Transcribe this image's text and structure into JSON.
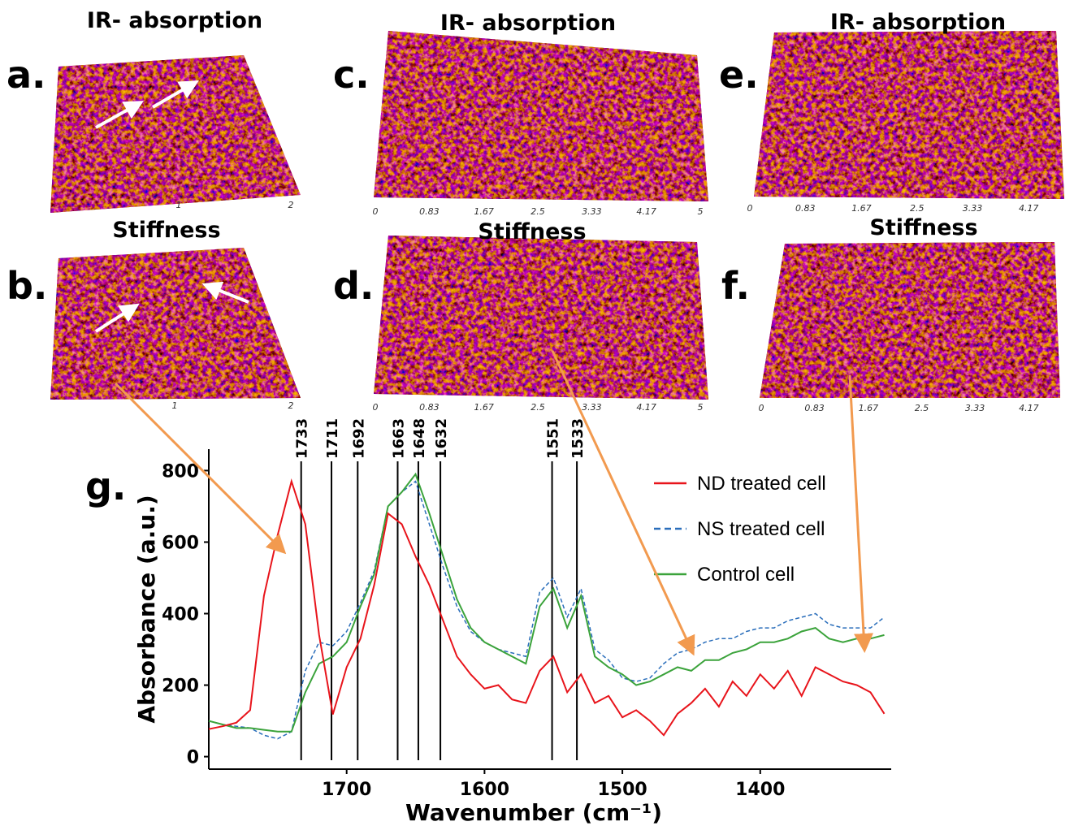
{
  "panels": [
    {
      "label": "a.",
      "title": "IR- absorption",
      "xticks": [
        1,
        2
      ]
    },
    {
      "label": "b.",
      "title": "Stiffness",
      "xticks": [
        1,
        2
      ]
    },
    {
      "label": "c.",
      "title": "IR- absorption",
      "xticks": [
        0,
        0.83,
        1.67,
        2.5,
        3.33,
        4.17,
        5
      ]
    },
    {
      "label": "d.",
      "title": "Stiffness",
      "xticks": [
        0,
        0.83,
        1.67,
        2.5,
        3.33,
        4.17,
        5
      ]
    },
    {
      "label": "e.",
      "title": "IR- absorption",
      "xticks": [
        0,
        0.83,
        1.67,
        2.5,
        3.33,
        4.17
      ]
    },
    {
      "label": "f.",
      "title": "Stiffness",
      "xticks": [
        0,
        0.83,
        1.67,
        2.5,
        3.33,
        4.17
      ]
    }
  ],
  "chart_data": {
    "type": "line",
    "label": "g.",
    "xlabel": "Wavenumber (cm⁻¹)",
    "ylabel": "Absorbance  (a.u.)",
    "x": [
      1800,
      1790,
      1780,
      1770,
      1760,
      1750,
      1740,
      1730,
      1720,
      1710,
      1700,
      1690,
      1680,
      1670,
      1660,
      1650,
      1640,
      1630,
      1620,
      1610,
      1600,
      1590,
      1580,
      1570,
      1560,
      1550,
      1540,
      1530,
      1520,
      1510,
      1500,
      1490,
      1480,
      1470,
      1460,
      1450,
      1440,
      1430,
      1420,
      1410,
      1400,
      1390,
      1380,
      1370,
      1360,
      1350,
      1340,
      1330,
      1320,
      1310
    ],
    "series": [
      {
        "name": "ND treated cell",
        "color": "#e8141b",
        "style": "solid",
        "values": [
          77,
          85,
          95,
          130,
          450,
          620,
          770,
          650,
          340,
          118,
          250,
          330,
          480,
          680,
          650,
          560,
          480,
          380,
          280,
          230,
          190,
          200,
          160,
          150,
          240,
          280,
          180,
          230,
          150,
          170,
          110,
          130,
          100,
          60,
          120,
          150,
          190,
          140,
          210,
          170,
          230,
          190,
          240,
          170,
          250,
          230,
          210,
          200,
          180,
          120
        ]
      },
      {
        "name": "NS treated cell",
        "color": "#2a6ebb",
        "style": "dashed",
        "values": [
          100,
          90,
          85,
          80,
          60,
          50,
          70,
          240,
          320,
          310,
          350,
          430,
          520,
          700,
          740,
          770,
          650,
          530,
          420,
          350,
          320,
          300,
          290,
          280,
          460,
          500,
          390,
          470,
          300,
          270,
          220,
          210,
          220,
          260,
          290,
          300,
          320,
          330,
          330,
          350,
          360,
          360,
          380,
          390,
          400,
          370,
          360,
          360,
          360,
          390
        ]
      },
      {
        "name": "Control cell",
        "color": "#3ba33b",
        "style": "solid",
        "values": [
          100,
          90,
          80,
          80,
          75,
          70,
          70,
          180,
          260,
          280,
          320,
          420,
          510,
          700,
          740,
          790,
          680,
          560,
          440,
          360,
          320,
          300,
          280,
          260,
          420,
          470,
          360,
          450,
          280,
          250,
          230,
          200,
          210,
          230,
          250,
          240,
          270,
          270,
          290,
          300,
          320,
          320,
          330,
          350,
          360,
          330,
          320,
          330,
          330,
          340
        ]
      }
    ],
    "reference_lines": [
      1733,
      1711,
      1692,
      1663,
      1648,
      1632,
      1551,
      1533
    ],
    "xlim": [
      1800,
      1305
    ],
    "ylim": [
      -35,
      860
    ],
    "xticks": [
      1700,
      1600,
      1500,
      1400
    ],
    "yticks": [
      0,
      200,
      400,
      600,
      800
    ],
    "legend": "top-right"
  }
}
